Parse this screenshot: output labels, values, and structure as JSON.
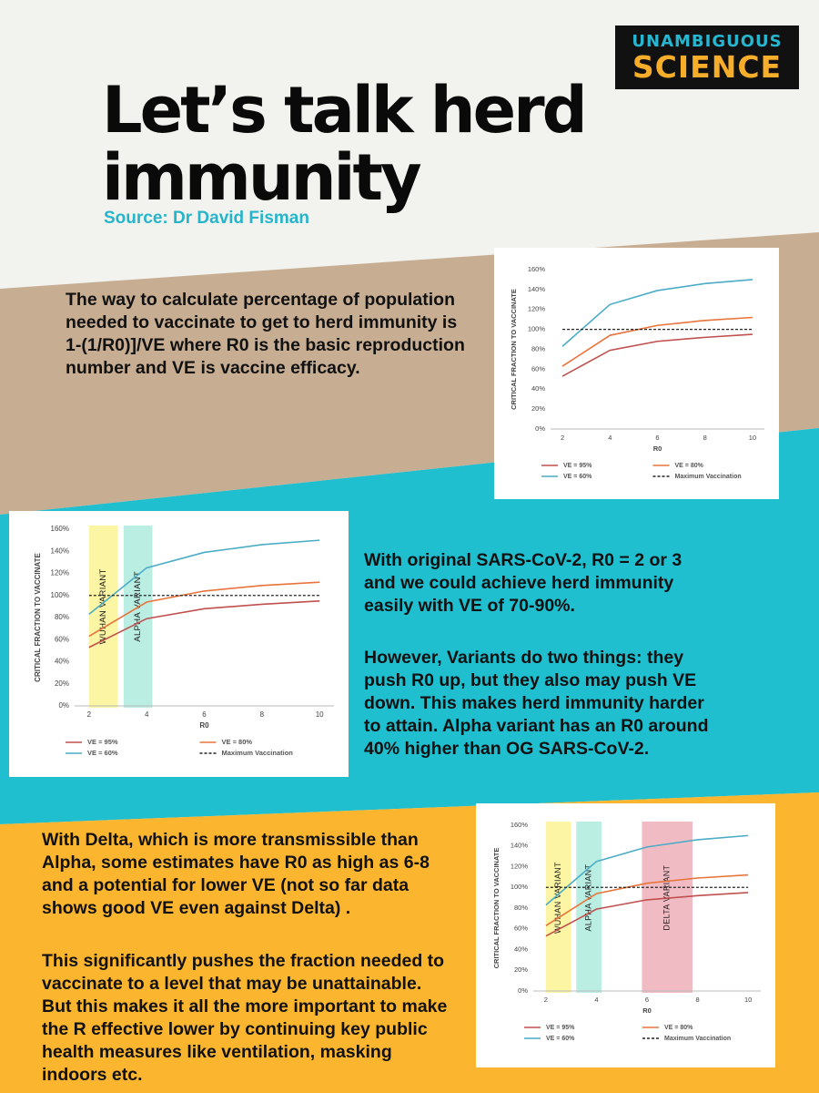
{
  "logo": {
    "line1": "UNAMBIGUOUS",
    "line2": "SCIENCE"
  },
  "title": "Let’s talk herd immunity",
  "source": "Source: Dr David Fisman",
  "colors": {
    "beige": "#c7ad92",
    "teal": "#20bfd0",
    "orange": "#fbb52f",
    "accent_text": "#25b5cb",
    "ve95": "#c0504d",
    "ve80": "#e8743b",
    "ve60": "#4bacc6"
  },
  "intro_text": "The way to calculate percentage of population needed to  vaccinate to get to herd immunity is 1-(1/R0)]/VE where R0 is the basic reproduction number and VE is vaccine efficacy.",
  "middle_text_1": "With original SARS-CoV-2,  R0 = 2 or 3 and we could achieve herd immunity easily with VE of 70-90%.",
  "middle_text_2": "However, Variants do two things: they push R0 up, but they also may push VE down.  This makes herd immunity harder to attain.  Alpha variant has an R0 around 40% higher than OG SARS-CoV-2.",
  "bottom_text_1": "With Delta, which is more transmissible than Alpha, some estimates have R0 as high as 6-8 and a potential for lower VE (not so far data shows good VE even against Delta) .",
  "bottom_text_2": "This significantly pushes the fraction needed to vaccinate to a level that may be unattainable. But this makes it all the more important to make the R effective lower by continuing key public health measures like ventilation, masking indoors etc.",
  "chart_data": [
    {
      "type": "line",
      "title": "",
      "xlabel": "R0",
      "ylabel": "CRITICAL FRACTION TO VACCINATE",
      "x": [
        2,
        4,
        6,
        8,
        10
      ],
      "xlim": [
        1.5,
        10.5
      ],
      "ylim": [
        0,
        160
      ],
      "yticks": [
        "0%",
        "20%",
        "40%",
        "60%",
        "80%",
        "100%",
        "120%",
        "140%",
        "160%"
      ],
      "series": [
        {
          "name": "VE = 95%",
          "color": "#c0504d",
          "dashed": false,
          "values": [
            53,
            79,
            88,
            92,
            95
          ]
        },
        {
          "name": "VE = 80%",
          "color": "#e8743b",
          "dashed": false,
          "values": [
            63,
            94,
            104,
            109,
            112
          ]
        },
        {
          "name": "VE = 60%",
          "color": "#4bacc6",
          "dashed": false,
          "values": [
            83,
            125,
            139,
            146,
            150
          ]
        },
        {
          "name": "Maximum Vaccination",
          "color": "#222222",
          "dashed": true,
          "values": [
            100,
            100,
            100,
            100,
            100
          ]
        }
      ],
      "bands": []
    },
    {
      "type": "line",
      "title": "",
      "xlabel": "R0",
      "ylabel": "CRITICAL FRACTION TO VACCINATE",
      "x": [
        2,
        4,
        6,
        8,
        10
      ],
      "xlim": [
        1.5,
        10.5
      ],
      "ylim": [
        0,
        160
      ],
      "yticks": [
        "0%",
        "20%",
        "40%",
        "60%",
        "80%",
        "100%",
        "120%",
        "140%",
        "160%"
      ],
      "series": [
        {
          "name": "VE = 95%",
          "color": "#c0504d",
          "dashed": false,
          "values": [
            53,
            79,
            88,
            92,
            95
          ]
        },
        {
          "name": "VE = 80%",
          "color": "#e8743b",
          "dashed": false,
          "values": [
            63,
            94,
            104,
            109,
            112
          ]
        },
        {
          "name": "VE = 60%",
          "color": "#4bacc6",
          "dashed": false,
          "values": [
            83,
            125,
            139,
            146,
            150
          ]
        },
        {
          "name": "Maximum Vaccination",
          "color": "#222222",
          "dashed": true,
          "values": [
            100,
            100,
            100,
            100,
            100
          ]
        }
      ],
      "bands": [
        {
          "label": "WUHAN VARIANT",
          "from": 2.0,
          "to": 3.0,
          "color": "#fbf49a"
        },
        {
          "label": "ALPHA VARIANT",
          "from": 3.2,
          "to": 4.2,
          "color": "#b2ece0"
        }
      ]
    },
    {
      "type": "line",
      "title": "",
      "xlabel": "R0",
      "ylabel": "CRITICAL FRACTION TO VACCINATE",
      "x": [
        2,
        4,
        6,
        8,
        10
      ],
      "xlim": [
        1.5,
        10.5
      ],
      "ylim": [
        0,
        160
      ],
      "yticks": [
        "0%",
        "20%",
        "40%",
        "60%",
        "80%",
        "100%",
        "120%",
        "140%",
        "160%"
      ],
      "series": [
        {
          "name": "VE = 95%",
          "color": "#c0504d",
          "dashed": false,
          "values": [
            53,
            79,
            88,
            92,
            95
          ]
        },
        {
          "name": "VE = 80%",
          "color": "#e8743b",
          "dashed": false,
          "values": [
            63,
            94,
            104,
            109,
            112
          ]
        },
        {
          "name": "VE = 60%",
          "color": "#4bacc6",
          "dashed": false,
          "values": [
            83,
            125,
            139,
            146,
            150
          ]
        },
        {
          "name": "Maximum Vaccination",
          "color": "#222222",
          "dashed": true,
          "values": [
            100,
            100,
            100,
            100,
            100
          ]
        }
      ],
      "bands": [
        {
          "label": "WUHAN VARIANT",
          "from": 2.0,
          "to": 3.0,
          "color": "#fbf49a"
        },
        {
          "label": "ALPHA VARIANT",
          "from": 3.2,
          "to": 4.2,
          "color": "#b2ece0"
        },
        {
          "label": "DELTA VARIANT",
          "from": 5.8,
          "to": 7.8,
          "color": "#f0b4be"
        }
      ]
    }
  ]
}
